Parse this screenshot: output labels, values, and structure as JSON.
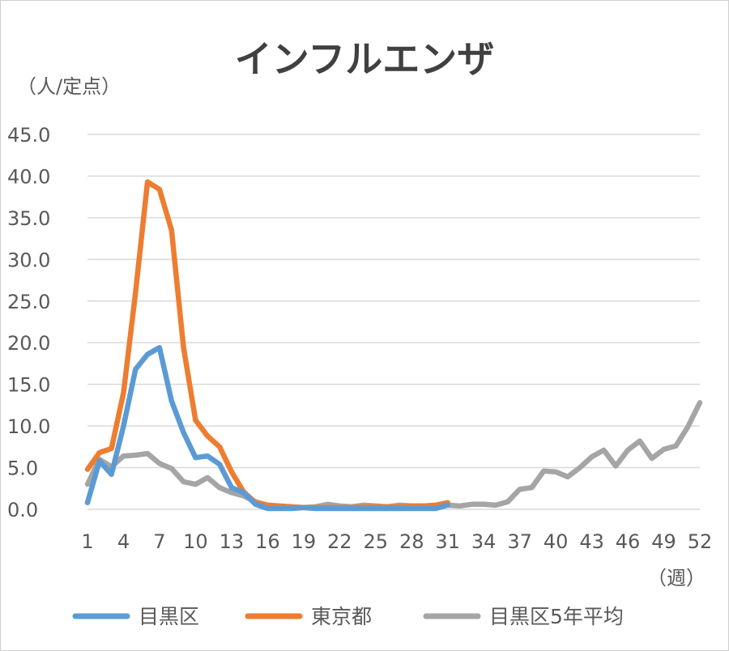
{
  "chart_data": {
    "type": "line",
    "title": "インフルエンザ",
    "ylabel": "（人/定点）",
    "xlabel": "（週）",
    "ylim": [
      0,
      45
    ],
    "xlim": [
      1,
      52
    ],
    "yticks": [
      "0.0",
      "5.0",
      "10.0",
      "15.0",
      "20.0",
      "25.0",
      "30.0",
      "35.0",
      "40.0",
      "45.0"
    ],
    "xticks": [
      1,
      4,
      7,
      10,
      13,
      16,
      19,
      22,
      25,
      28,
      31,
      34,
      37,
      40,
      43,
      46,
      49,
      52
    ],
    "grid": true,
    "legend_position": "bottom",
    "series": [
      {
        "name": "目黒区",
        "color": "#5b9bd5",
        "x": [
          1,
          2,
          3,
          4,
          5,
          6,
          7,
          8,
          9,
          10,
          11,
          12,
          13,
          14,
          15,
          16,
          17,
          18,
          19,
          20,
          21,
          22,
          23,
          24,
          25,
          26,
          27,
          28,
          29,
          30,
          31
        ],
        "values": [
          0.8,
          5.8,
          4.2,
          10.0,
          16.8,
          18.6,
          19.4,
          13.0,
          9.2,
          6.2,
          6.4,
          5.4,
          2.6,
          2.0,
          0.6,
          0.1,
          0.1,
          0.1,
          0.2,
          0.1,
          0.1,
          0.1,
          0.1,
          0.1,
          0.1,
          0.1,
          0.1,
          0.1,
          0.1,
          0.1,
          0.5
        ]
      },
      {
        "name": "東京都",
        "color": "#ed7d31",
        "x": [
          1,
          2,
          3,
          4,
          5,
          6,
          7,
          8,
          9,
          10,
          11,
          12,
          13,
          14,
          15,
          16,
          17,
          18,
          19,
          20,
          21,
          22,
          23,
          24,
          25,
          26,
          27,
          28,
          29,
          30,
          31
        ],
        "values": [
          4.8,
          6.8,
          7.3,
          14.0,
          26.0,
          39.3,
          38.4,
          33.5,
          19.4,
          10.7,
          8.8,
          7.5,
          4.5,
          2.1,
          0.8,
          0.5,
          0.4,
          0.3,
          0.2,
          0.2,
          0.2,
          0.2,
          0.2,
          0.3,
          0.3,
          0.3,
          0.3,
          0.4,
          0.4,
          0.5,
          0.8
        ]
      },
      {
        "name": "目黒区5年平均",
        "color": "#a5a5a5",
        "x": [
          1,
          2,
          3,
          4,
          5,
          6,
          7,
          8,
          9,
          10,
          11,
          12,
          13,
          14,
          15,
          16,
          17,
          18,
          19,
          20,
          21,
          22,
          23,
          24,
          25,
          26,
          27,
          28,
          29,
          30,
          31,
          32,
          33,
          34,
          35,
          36,
          37,
          38,
          39,
          40,
          41,
          42,
          43,
          44,
          45,
          46,
          47,
          48,
          49,
          50,
          51,
          52
        ],
        "values": [
          3.0,
          6.0,
          5.1,
          6.4,
          6.5,
          6.7,
          5.5,
          4.9,
          3.3,
          3.0,
          3.8,
          2.6,
          2.0,
          1.6,
          0.9,
          0.5,
          0.3,
          0.2,
          0.2,
          0.3,
          0.6,
          0.4,
          0.3,
          0.5,
          0.4,
          0.3,
          0.5,
          0.4,
          0.4,
          0.3,
          0.5,
          0.4,
          0.6,
          0.6,
          0.5,
          0.9,
          2.4,
          2.6,
          4.6,
          4.5,
          3.9,
          5.0,
          6.3,
          7.1,
          5.2,
          7.1,
          8.2,
          6.1,
          7.2,
          7.6,
          9.9,
          12.8
        ]
      }
    ]
  }
}
